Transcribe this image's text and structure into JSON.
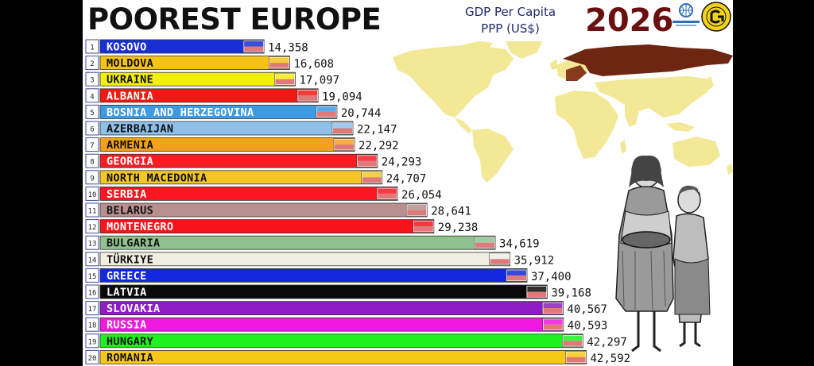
{
  "header": {
    "title": "POOREST EUROPE",
    "subtitle_line1": "GDP Per Capita",
    "subtitle_line2": "PPP (US$)",
    "year": "2026"
  },
  "chart_data": {
    "type": "bar",
    "orientation": "horizontal",
    "title": "POOREST EUROPE",
    "subtitle": "GDP Per Capita PPP (US$)",
    "year": "2026",
    "ranks": [
      1,
      2,
      3,
      4,
      5,
      6,
      7,
      8,
      9,
      10,
      11,
      12,
      13,
      14,
      15,
      16,
      17,
      18,
      19,
      20
    ],
    "categories": [
      "KOSOVO",
      "MOLDOVA",
      "UKRAINE",
      "ALBANIA",
      "BOSNIA AND HERZEGOVINA",
      "AZERBAIJAN",
      "ARMENIA",
      "GEORGIA",
      "NORTH MACEDONIA",
      "SERBIA",
      "BELARUS",
      "MONTENEGRO",
      "BULGARIA",
      "TÜRKIYE",
      "GREECE",
      "LATVIA",
      "SLOVAKIA",
      "RUSSIA",
      "HUNGARY",
      "ROMANIA"
    ],
    "values": [
      14358,
      16608,
      17097,
      19094,
      20744,
      22147,
      22292,
      24293,
      24707,
      26054,
      28641,
      29238,
      34619,
      35912,
      37400,
      39168,
      40567,
      40593,
      42297,
      42592
    ],
    "value_labels": [
      "14,358",
      "16,608",
      "17,097",
      "19,094",
      "20,744",
      "22,147",
      "22,292",
      "24,293",
      "24,707",
      "26,054",
      "28,641",
      "29,238",
      "34,619",
      "35,912",
      "37,400",
      "39,168",
      "40,567",
      "40,593",
      "42,297",
      "42,592"
    ],
    "bar_colors": [
      "#1a2ed6",
      "#f5c318",
      "#f2ee12",
      "#f01a14",
      "#3d9be3",
      "#8fc0ea",
      "#f5a11f",
      "#f71d23",
      "#f4c726",
      "#fa1722",
      "#b89090",
      "#f4141a",
      "#8fc28f",
      "#f0eee0",
      "#1428e0",
      "#0a0a0a",
      "#8d1cc2",
      "#f019df",
      "#1ef21e",
      "#f7c916"
    ],
    "label_colors": [
      "#fff",
      "#111",
      "#111",
      "#fff",
      "#fff",
      "#111",
      "#111",
      "#fff",
      "#111",
      "#fff",
      "#111",
      "#fff",
      "#111",
      "#111",
      "#fff",
      "#fff",
      "#fff",
      "#fff",
      "#111",
      "#111"
    ]
  }
}
